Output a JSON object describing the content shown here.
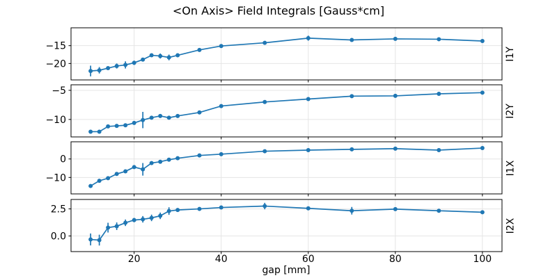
{
  "title": "<On Axis> Field Integrals [Gauss*cm]",
  "xlabel": "gap [mm]",
  "colors": {
    "line": "#1f77b4",
    "grid": "#e5e5e5",
    "spine": "#000000",
    "background": "#ffffff",
    "text": "#000000"
  },
  "chart_data": {
    "type": "line",
    "title": "<On Axis> Field Integrals [Gauss*cm]",
    "xlabel": "gap [mm]",
    "x": [
      10,
      12,
      14,
      16,
      18,
      20,
      22,
      24,
      26,
      28,
      30,
      35,
      40,
      50,
      60,
      70,
      80,
      90,
      100
    ],
    "xlim": [
      5.5,
      104.5
    ],
    "xticks": [
      20,
      40,
      60,
      80,
      100
    ],
    "xtick_labels": [
      "20",
      "40",
      "60",
      "80",
      "100"
    ],
    "grid": true,
    "marker": "o",
    "errorbars": true,
    "legend": "none",
    "panels": [
      {
        "label": "I1Y",
        "ylim": [
          -24.6,
          -10.0
        ],
        "yticks": [
          -15,
          -20
        ],
        "ytick_labels": [
          "−15",
          "−20"
        ],
        "values": [
          -22.1,
          -21.9,
          -21.3,
          -20.7,
          -20.4,
          -19.8,
          -18.9,
          -17.7,
          -17.9,
          -18.3,
          -17.7,
          -16.2,
          -15.1,
          -14.2,
          -12.9,
          -13.4,
          -13.1,
          -13.2,
          -13.7
        ],
        "errors": [
          1.5,
          0.9,
          0.5,
          0.7,
          1.0,
          0.6,
          0.3,
          0.2,
          0.7,
          0.8,
          0.2,
          0.2,
          0.2,
          0.5,
          0.7,
          0.15,
          0.15,
          0.15,
          0.15
        ]
      },
      {
        "label": "I2Y",
        "ylim": [
          -13.0,
          -4.05
        ],
        "yticks": [
          -5,
          -10
        ],
        "ytick_labels": [
          "−5",
          "−10"
        ],
        "values": [
          -12.1,
          -12.1,
          -11.2,
          -11.1,
          -11.0,
          -10.6,
          -10.1,
          -9.7,
          -9.4,
          -9.7,
          -9.4,
          -8.8,
          -7.7,
          -7.0,
          -6.5,
          -6.0,
          -5.95,
          -5.6,
          -5.4
        ],
        "errors": [
          0.15,
          0.15,
          0.2,
          0.2,
          0.25,
          0.3,
          1.4,
          0.2,
          0.15,
          0.2,
          0.15,
          0.1,
          0.1,
          0.1,
          0.1,
          0.1,
          0.1,
          0.1,
          0.1
        ]
      },
      {
        "label": "I1X",
        "ylim": [
          -18.9,
          9.3
        ],
        "yticks": [
          0,
          -10
        ],
        "ytick_labels": [
          "0",
          "−10"
        ],
        "values": [
          -14.6,
          -11.8,
          -10.4,
          -8.1,
          -6.7,
          -4.4,
          -5.6,
          -2.2,
          -1.5,
          -0.4,
          0.4,
          1.9,
          2.6,
          4.2,
          4.8,
          5.2,
          5.6,
          4.8,
          5.9
        ],
        "errors": [
          0.5,
          0.3,
          0.3,
          0.3,
          0.3,
          0.3,
          3.4,
          0.3,
          0.2,
          0.2,
          0.2,
          0.2,
          0.2,
          0.2,
          0.2,
          0.2,
          0.2,
          0.2,
          0.2
        ]
      },
      {
        "label": "I2X",
        "ylim": [
          -1.44,
          3.37
        ],
        "yticks": [
          2.5,
          0.0
        ],
        "ytick_labels": [
          "2.5",
          "0.0"
        ],
        "values": [
          -0.32,
          -0.38,
          0.77,
          0.9,
          1.22,
          1.47,
          1.54,
          1.67,
          1.86,
          2.3,
          2.4,
          2.5,
          2.63,
          2.76,
          2.55,
          2.33,
          2.48,
          2.33,
          2.19
        ],
        "errors": [
          0.55,
          0.5,
          0.45,
          0.35,
          0.3,
          0.2,
          0.3,
          0.3,
          0.3,
          0.35,
          0.12,
          0.12,
          0.12,
          0.3,
          0.12,
          0.35,
          0.12,
          0.15,
          0.12
        ]
      }
    ]
  }
}
